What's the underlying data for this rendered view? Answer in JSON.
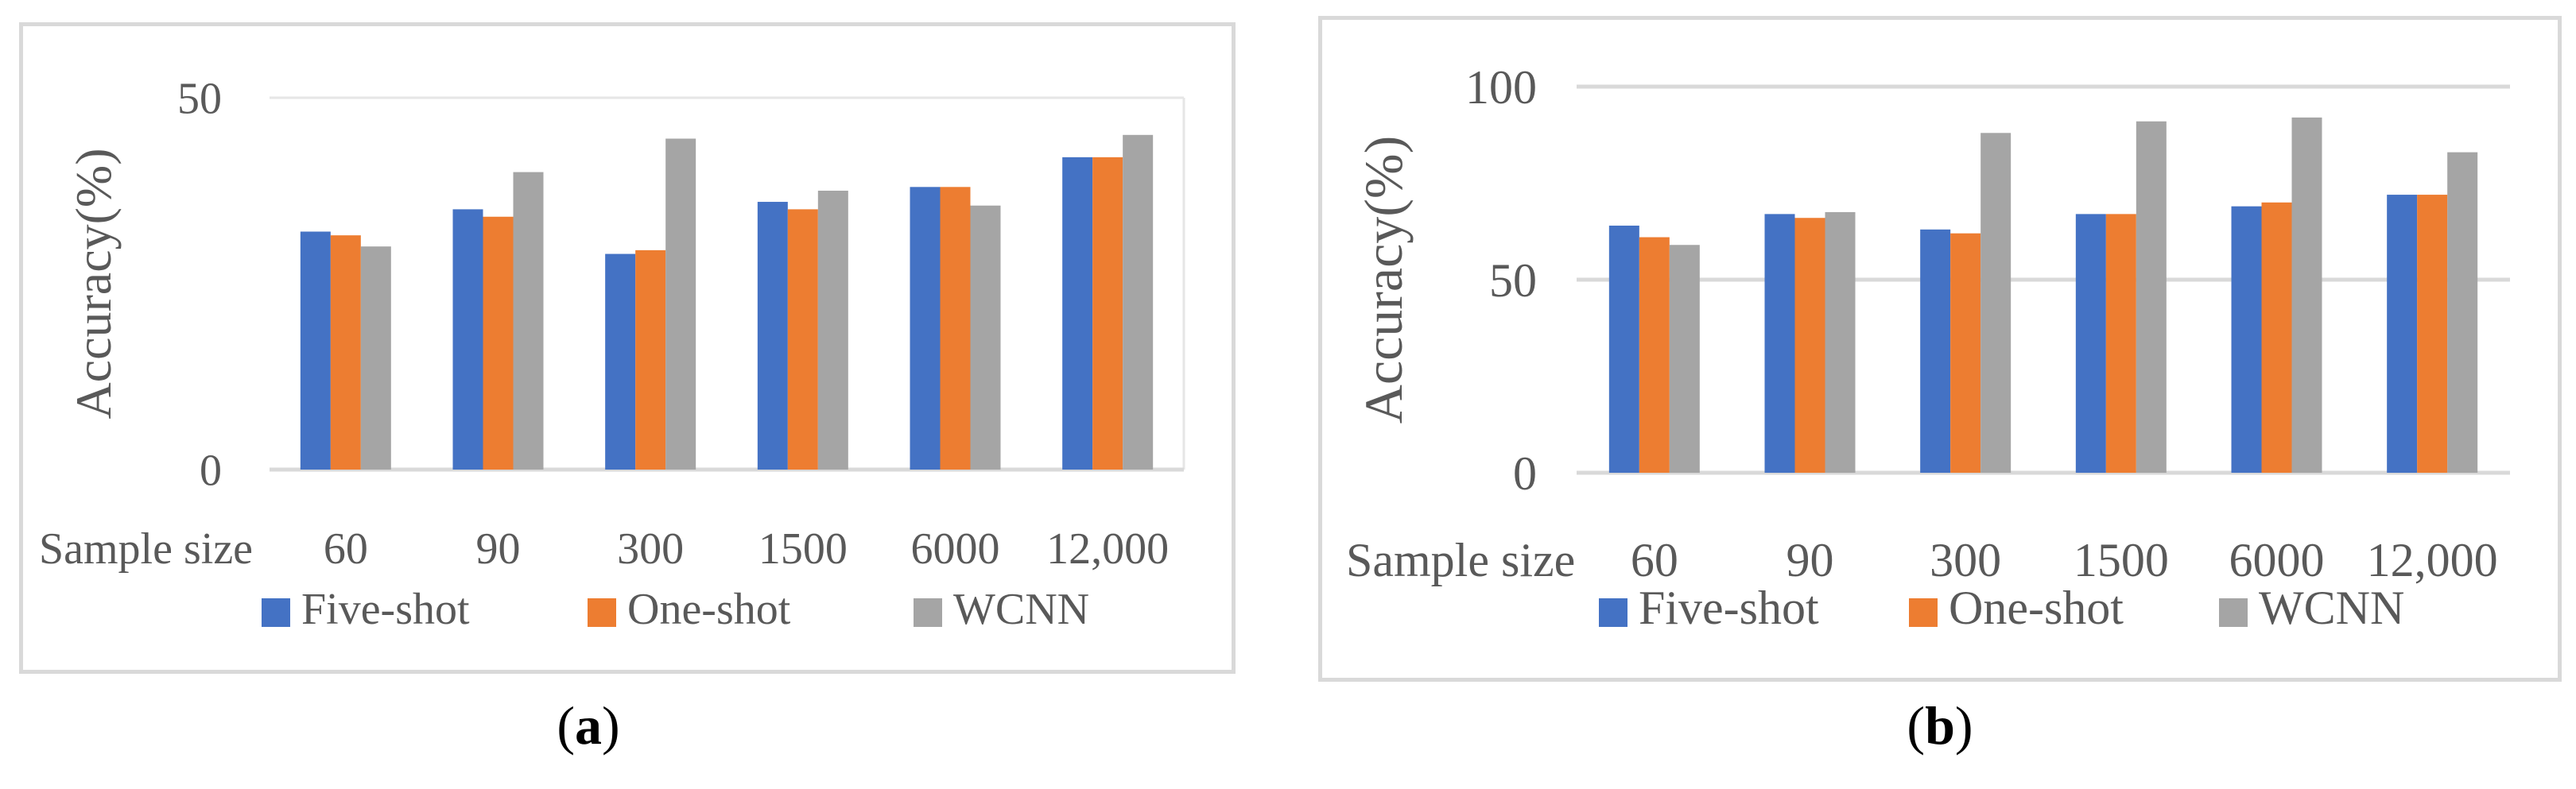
{
  "chart_data": [
    {
      "panel_id": "a",
      "type": "bar",
      "ylabel": "Accuracy(%)",
      "xlabel": "Sample size",
      "ylim": [
        0,
        50
      ],
      "yticks": [
        0,
        50
      ],
      "grid": false,
      "legend_position": "bottom",
      "categories": [
        "60",
        "90",
        "300",
        "1500",
        "6000",
        "12,000"
      ],
      "series": [
        {
          "name": "Five-shot",
          "color": "#4472C4",
          "values": [
            32,
            35,
            29,
            36,
            38,
            42
          ]
        },
        {
          "name": "One-shot",
          "color": "#ED7D31",
          "values": [
            31.5,
            34,
            29.5,
            35,
            38,
            42
          ]
        },
        {
          "name": "WCNN",
          "color": "#A5A5A5",
          "values": [
            30,
            40,
            44.5,
            37.5,
            35.5,
            45
          ]
        }
      ]
    },
    {
      "panel_id": "b",
      "type": "bar",
      "ylabel": "Accuracy(%)",
      "xlabel": "Sample size",
      "ylim": [
        0,
        100
      ],
      "yticks": [
        0,
        50,
        100
      ],
      "grid": true,
      "legend_position": "bottom",
      "categories": [
        "60",
        "90",
        "300",
        "1500",
        "6000",
        "12,000"
      ],
      "series": [
        {
          "name": "Five-shot",
          "color": "#4472C4",
          "values": [
            64,
            67,
            63,
            67,
            69,
            72
          ]
        },
        {
          "name": "One-shot",
          "color": "#ED7D31",
          "values": [
            61,
            66,
            62,
            67,
            70,
            72
          ]
        },
        {
          "name": "WCNN",
          "color": "#A5A5A5",
          "values": [
            59,
            67.5,
            88,
            91,
            92,
            83
          ]
        }
      ]
    }
  ],
  "captions": {
    "a": {
      "open": "(",
      "letter": "a",
      "close": ")"
    },
    "b": {
      "open": "(",
      "letter": "b",
      "close": ")"
    }
  }
}
